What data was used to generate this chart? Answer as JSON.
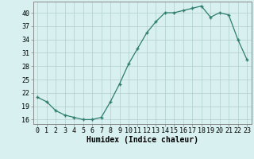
{
  "x": [
    0,
    1,
    2,
    3,
    4,
    5,
    6,
    7,
    8,
    9,
    10,
    11,
    12,
    13,
    14,
    15,
    16,
    17,
    18,
    19,
    20,
    21,
    22,
    23
  ],
  "y": [
    21,
    20,
    18,
    17,
    16.5,
    16,
    16,
    16.5,
    20,
    24,
    28.5,
    32,
    35.5,
    38,
    40,
    40,
    40.5,
    41,
    41.5,
    39,
    40,
    39.5,
    34,
    29.5
  ],
  "line_color": "#2e7d6e",
  "marker_color": "#2e7d6e",
  "bg_color": "#d8f0f0",
  "grid_color": "#b0cece",
  "xlabel": "Humidex (Indice chaleur)",
  "xlim": [
    -0.5,
    23.5
  ],
  "ylim": [
    15,
    42.5
  ],
  "yticks": [
    16,
    19,
    22,
    25,
    28,
    31,
    34,
    37,
    40
  ],
  "xtick_labels": [
    "0",
    "1",
    "2",
    "3",
    "4",
    "5",
    "6",
    "7",
    "8",
    "9",
    "10",
    "11",
    "12",
    "13",
    "14",
    "15",
    "16",
    "17",
    "18",
    "19",
    "20",
    "21",
    "22",
    "23"
  ],
  "xlabel_fontsize": 7.0,
  "tick_fontsize": 6.0
}
